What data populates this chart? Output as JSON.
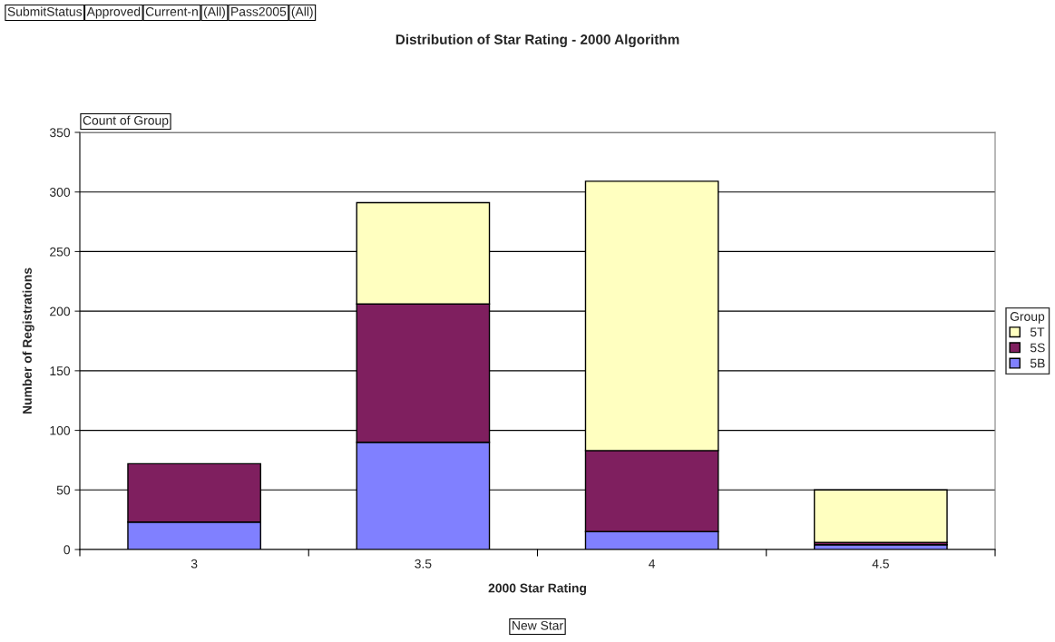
{
  "chart_data": {
    "type": "bar",
    "title": "Distribution of Star Rating - 2000 Algorithm",
    "xlabel": "2000 Star Rating",
    "ylabel": "Number of Registrations",
    "legend_title": "Group",
    "annotations": [
      "SubmitStatus",
      "Approved",
      "Current-n",
      "(All)",
      "Pass2005",
      "(All)",
      "Count of Group",
      "New Star"
    ],
    "categories": [
      "3",
      "3.5",
      "4",
      "4.5"
    ],
    "stacked": true,
    "series": [
      {
        "name": "5B",
        "color": "#8080ff",
        "values": [
          23,
          90,
          15,
          4
        ]
      },
      {
        "name": "5S",
        "color": "#7f1f5f",
        "values": [
          49,
          116,
          68,
          2
        ]
      },
      {
        "name": "5T",
        "color": "#ffffc0",
        "values": [
          null,
          85,
          226,
          44
        ]
      }
    ],
    "ylim": [
      0,
      350
    ],
    "yticks": [
      0,
      50,
      100,
      150,
      200,
      250,
      300,
      350
    ],
    "grid": "y",
    "legend": "right"
  }
}
